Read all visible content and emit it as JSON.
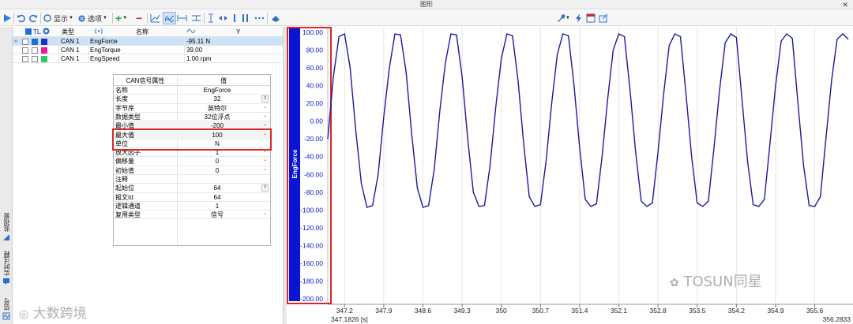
{
  "window": {
    "title": "图形",
    "close_glyph": "✕"
  },
  "toolbar": {
    "show_label": "显示",
    "options_label": "选项"
  },
  "left_rail": {
    "tabs": [
      {
        "label": "监视窗",
        "icon": "monitor-icon"
      },
      {
        "label": "实时注释",
        "icon": "comment-icon"
      },
      {
        "label": "信号",
        "icon": "signal-icon"
      }
    ]
  },
  "signal_table": {
    "header": {
      "tl_label": "TL",
      "type_label": "类型",
      "name_label": "名称",
      "y_label": "Y"
    },
    "rows": [
      {
        "checked": true,
        "color": "#1432d2",
        "type": "CAN 1",
        "name": "EngForce",
        "y": "-95.11 N",
        "selected": true
      },
      {
        "checked": false,
        "color": "#e8199e",
        "type": "CAN 1",
        "name": "EngTorque",
        "y": "39.00",
        "selected": false
      },
      {
        "checked": false,
        "color": "#22cc66",
        "type": "CAN 1",
        "name": "EngSpeed",
        "y": "1.00 rpm",
        "selected": false
      }
    ]
  },
  "properties": {
    "header": {
      "key": "CAN信号属性",
      "value": "值"
    },
    "rows": [
      {
        "key": "名称",
        "value": "EngForce",
        "control": ""
      },
      {
        "key": "长度",
        "value": "32",
        "control": "spin"
      },
      {
        "key": "字节序",
        "value": "英特尔",
        "control": "dropdown"
      },
      {
        "key": "数据类型",
        "value": "32位浮点",
        "control": "dropdown"
      },
      {
        "key": "最小值",
        "value": "-200",
        "control": "dropdown"
      },
      {
        "key": "最大值",
        "value": "100",
        "control": "dropdown"
      },
      {
        "key": "单位",
        "value": "N",
        "control": ""
      },
      {
        "key": "放大因子",
        "value": "1",
        "control": "dropdown"
      },
      {
        "key": "偏移量",
        "value": "0",
        "control": "dropdown"
      },
      {
        "key": "初始值",
        "value": "0",
        "control": "dropdown"
      },
      {
        "key": "注释",
        "value": "",
        "control": ""
      },
      {
        "key": "起始位",
        "value": "64",
        "control": "spin"
      },
      {
        "key": "报文Id",
        "value": "64",
        "control": ""
      },
      {
        "key": "逻辑通道",
        "value": "1",
        "control": ""
      },
      {
        "key": "复用类型",
        "value": "信号",
        "control": "dropdown"
      }
    ]
  },
  "graph": {
    "axis_signal_name": "EngForce",
    "axis_color": "#0a14d2",
    "trace_color": "#1a1aa0",
    "highlight_color": "#d9262b"
  },
  "chart_data": {
    "type": "line",
    "series_name": "EngForce",
    "ylim": [
      -206,
      106
    ],
    "xlim": [
      346.9,
      356.2833
    ],
    "y_ticks": [
      "100.00",
      "80.00",
      "60.00",
      "40.00",
      "20.00",
      "0.00",
      "-20.00",
      "-40.00",
      "-60.00",
      "-80.00",
      "-100.00",
      "-120.00",
      "-140.00",
      "-160.00",
      "-180.00",
      "-200.00"
    ],
    "x_ticks": [
      "347.2",
      "347.9",
      "348.6",
      "349.3",
      "350",
      "350.7",
      "351.4",
      "352.1",
      "352.8",
      "353.5",
      "354.2",
      "354.9",
      "355.6"
    ],
    "x_start_label": "347.1826 [s]",
    "x_end_label": "356.2833",
    "x": [
      346.9,
      347.0,
      347.1,
      347.2,
      347.3,
      347.4,
      347.5,
      347.6,
      347.7,
      347.8,
      347.9,
      348.0,
      348.1,
      348.2,
      348.3,
      348.4,
      348.5,
      348.6,
      348.7,
      348.8,
      348.9,
      349.0,
      349.1,
      349.2,
      349.3,
      349.4,
      349.5,
      349.6,
      349.7,
      349.8,
      349.9,
      350.0,
      350.1,
      350.2,
      350.3,
      350.4,
      350.5,
      350.6,
      350.7,
      350.8,
      350.9,
      351.0,
      351.1,
      351.2,
      351.3,
      351.4,
      351.5,
      351.6,
      351.7,
      351.8,
      351.9,
      352.0,
      352.1,
      352.2,
      352.3,
      352.4,
      352.5,
      352.6,
      352.7,
      352.8,
      352.9,
      353.0,
      353.1,
      353.2,
      353.3,
      353.4,
      353.5,
      353.6,
      353.7,
      353.8,
      353.9,
      354.0,
      354.1,
      354.2,
      354.3,
      354.4,
      354.5,
      354.6,
      354.7,
      354.8,
      354.9,
      355.0,
      355.1,
      355.2,
      355.3,
      355.4,
      355.5,
      355.6,
      355.7,
      355.8,
      355.9,
      356.0,
      356.1,
      356.2
    ],
    "y": [
      -20,
      50,
      95,
      98,
      60,
      -10,
      -70,
      -97,
      -95,
      -60,
      5,
      60,
      98,
      97,
      55,
      -15,
      -75,
      -97,
      -95,
      -55,
      10,
      65,
      98,
      97,
      50,
      -20,
      -80,
      -96,
      -95,
      -50,
      15,
      70,
      98,
      96,
      45,
      -25,
      -85,
      -96,
      -94,
      -45,
      20,
      75,
      98,
      96,
      40,
      -30,
      -88,
      -96,
      -93,
      -40,
      25,
      80,
      98,
      95,
      35,
      -35,
      -90,
      -96,
      -92,
      -35,
      30,
      85,
      98,
      95,
      30,
      -40,
      -92,
      -96,
      -90,
      -30,
      35,
      88,
      98,
      94,
      25,
      -45,
      -94,
      -96,
      -88,
      -25,
      40,
      90,
      98,
      93,
      20,
      -50,
      -95,
      -96,
      -85,
      -20,
      45,
      92,
      98,
      92
    ]
  },
  "watermarks": {
    "left": "大数跨境",
    "right": "TOSUN同星"
  }
}
